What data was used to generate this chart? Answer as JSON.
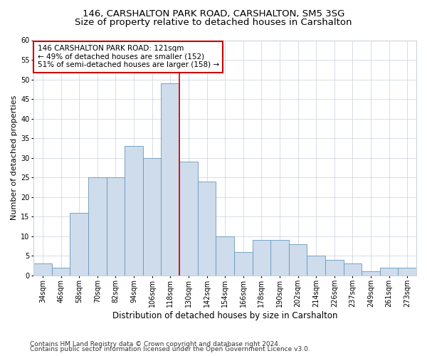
{
  "title1": "146, CARSHALTON PARK ROAD, CARSHALTON, SM5 3SG",
  "title2": "Size of property relative to detached houses in Carshalton",
  "xlabel": "Distribution of detached houses by size in Carshalton",
  "ylabel": "Number of detached properties",
  "categories": [
    "34sqm",
    "46sqm",
    "58sqm",
    "70sqm",
    "82sqm",
    "94sqm",
    "106sqm",
    "118sqm",
    "130sqm",
    "142sqm",
    "154sqm",
    "166sqm",
    "178sqm",
    "190sqm",
    "202sqm",
    "214sqm",
    "226sqm",
    "237sqm",
    "249sqm",
    "261sqm",
    "273sqm"
  ],
  "values": [
    3,
    2,
    16,
    25,
    25,
    33,
    30,
    49,
    29,
    24,
    10,
    6,
    9,
    9,
    8,
    5,
    4,
    3,
    1,
    2,
    2
  ],
  "bar_color": "#cfdcec",
  "bar_edge_color": "#6699bb",
  "vline_color": "#cc0000",
  "vline_pos": 7.5,
  "annotation_text": "146 CARSHALTON PARK ROAD: 121sqm\n← 49% of detached houses are smaller (152)\n51% of semi-detached houses are larger (158) →",
  "annotation_box_color": "#ffffff",
  "annotation_border_color": "#cc0000",
  "ylim": [
    0,
    60
  ],
  "yticks": [
    0,
    5,
    10,
    15,
    20,
    25,
    30,
    35,
    40,
    45,
    50,
    55,
    60
  ],
  "footer1": "Contains HM Land Registry data © Crown copyright and database right 2024.",
  "footer2": "Contains public sector information licensed under the Open Government Licence v3.0.",
  "bg_color": "#ffffff",
  "grid_color": "#c8d0da",
  "title1_fontsize": 9.5,
  "title2_fontsize": 9.5,
  "ylabel_fontsize": 8,
  "xlabel_fontsize": 8.5,
  "tick_fontsize": 7,
  "annotation_fontsize": 7.5,
  "footer_fontsize": 6.5
}
